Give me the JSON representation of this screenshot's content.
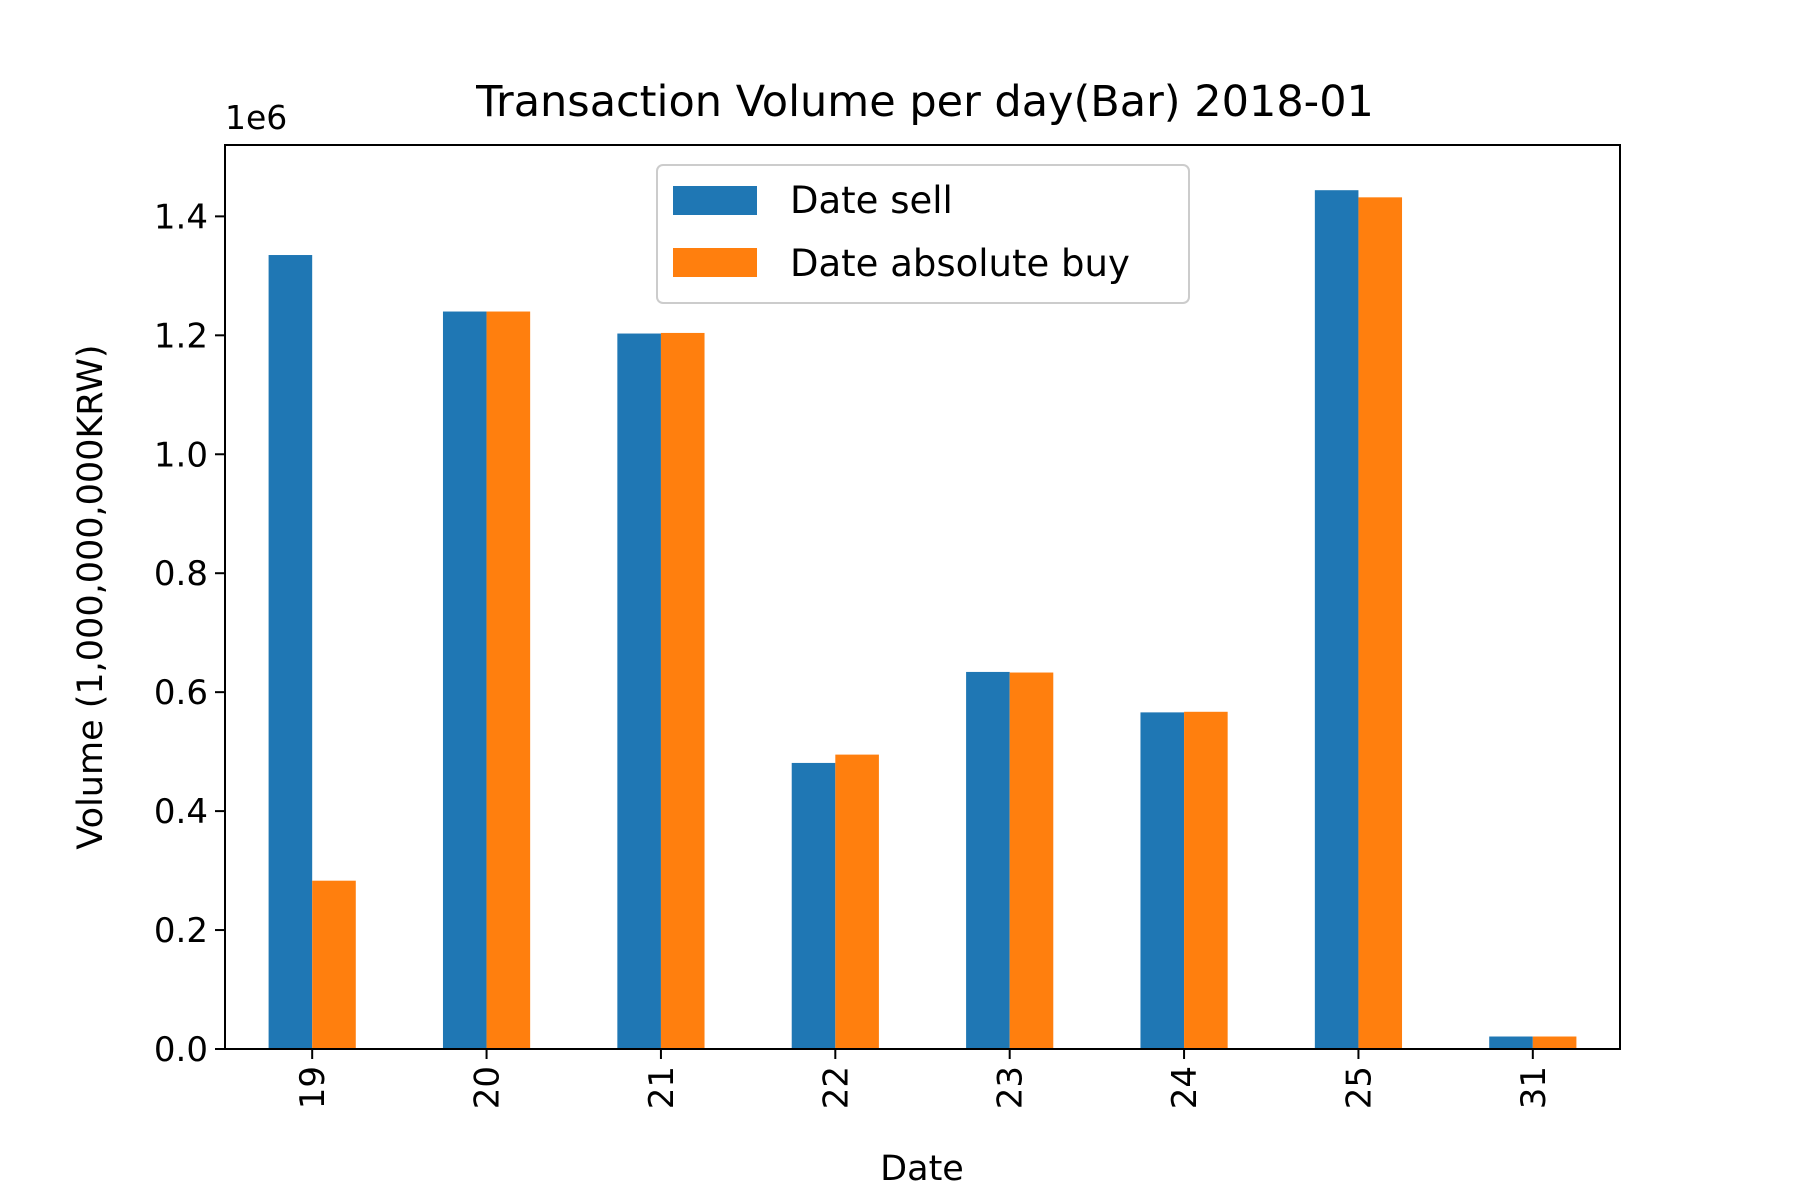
{
  "chart_data": {
    "type": "bar",
    "title": "Transaction Volume per day(Bar) 2018-01",
    "xlabel": "Date",
    "ylabel": "Volume (1,000,000,000KRW)",
    "y_offset_label": "1e6",
    "categories": [
      "19",
      "20",
      "21",
      "22",
      "23",
      "24",
      "25",
      "31"
    ],
    "series": [
      {
        "name": "Date sell",
        "color": "#1f77b4",
        "values": [
          1335000,
          1240000,
          1203000,
          481000,
          634000,
          566000,
          1444000,
          21000
        ]
      },
      {
        "name": "Date absolute buy",
        "color": "#ff7f0e",
        "values": [
          283000,
          1240000,
          1204000,
          495000,
          633000,
          567000,
          1432000,
          21000
        ]
      }
    ],
    "ylim": [
      0,
      1520000
    ],
    "yticks": [
      0,
      200000,
      400000,
      600000,
      800000,
      1000000,
      1200000,
      1400000
    ],
    "ytick_labels": [
      "0.0",
      "0.2",
      "0.4",
      "0.6",
      "0.8",
      "1.0",
      "1.2",
      "1.4"
    ],
    "grid": false,
    "legend_position": "top-center"
  }
}
